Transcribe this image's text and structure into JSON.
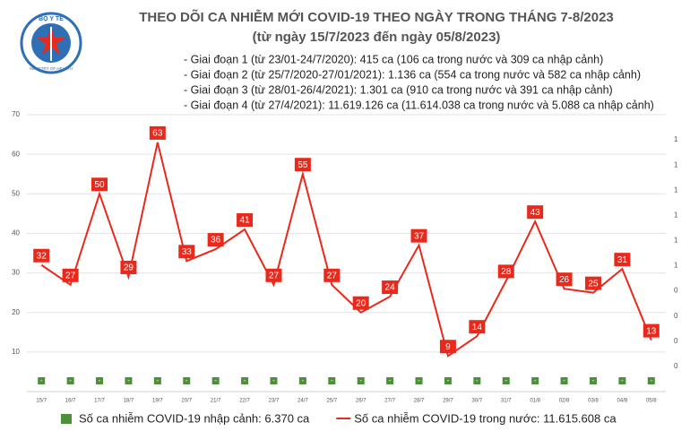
{
  "logo": {
    "top_text": "BỘ Y TẾ",
    "bottom_text": "MINISTRY OF HEALTH"
  },
  "chart_data": {
    "type": "line",
    "title": "THEO DÕI CA NHIỄM MỚI COVID-19 THEO NGÀY TRONG THÁNG 7-8/2023",
    "subtitle": "(từ ngày 15/7/2023 đến ngày 05/8/2023)",
    "annotations": [
      "- Giai đoạn 1 (từ 23/01-24/7/2020): 415 ca (106 ca trong nước và 309 ca nhập cảnh)",
      "- Giai đoạn 2 (từ 25/7/2020-27/01/2021): 1.136 ca (554 ca trong nước và 582 ca nhập cảnh)",
      "- Giai đoạn 3 (từ 28/01-26/4/2021): 1.301 ca (910 ca trong nước và 391 ca nhập cảnh)",
      "- Giai đoạn 4 (từ 27/4/2021): 11.619.126 ca (11.614.038 ca trong nước và 5.088 ca nhập cảnh)"
    ],
    "categories": [
      "15/7",
      "16/7",
      "17/7",
      "18/7",
      "19/7",
      "20/7",
      "21/7",
      "22/7",
      "23/7",
      "24/7",
      "25/7",
      "26/7",
      "27/7",
      "28/7",
      "29/7",
      "30/7",
      "31/7",
      "01/8",
      "02/8",
      "03/8",
      "04/8",
      "05/8"
    ],
    "series": [
      {
        "name": "Số ca nhiễm COVID-19 nhập cảnh: 6.370 ca",
        "type": "bar",
        "axis": "y2",
        "color": "#4e8f3a",
        "values": [
          0,
          0,
          0,
          0,
          0,
          0,
          0,
          0,
          0,
          0,
          0,
          0,
          0,
          0,
          0,
          0,
          0,
          0,
          0,
          0,
          0,
          0
        ],
        "value_labels": [
          "-",
          "-",
          "-",
          "-",
          "-",
          "-",
          "-",
          "-",
          "-",
          "-",
          "-",
          "-",
          "-",
          "-",
          "-",
          "-",
          "-",
          "-",
          "-",
          "-",
          "-",
          "-"
        ]
      },
      {
        "name": "Số ca nhiễm COVID-19 trong nước: 11.615.608 ca",
        "type": "line",
        "color": "#e8291c",
        "values": [
          32,
          27,
          50,
          29,
          63,
          33,
          36,
          41,
          27,
          55,
          27,
          20,
          24,
          37,
          9,
          14,
          28,
          43,
          26,
          25,
          31,
          13
        ]
      }
    ],
    "ylim": [
      0,
      70
    ],
    "yticks": [
      10,
      20,
      30,
      40,
      50,
      60,
      70
    ],
    "y2lim": [
      0,
      1.1
    ],
    "y2ticks": [
      {
        "value": 0.1,
        "label": "0"
      },
      {
        "value": 0.2,
        "label": "0"
      },
      {
        "value": 0.3,
        "label": "0"
      },
      {
        "value": 0.4,
        "label": "0"
      },
      {
        "value": 0.5,
        "label": "1"
      },
      {
        "value": 0.6,
        "label": "1"
      },
      {
        "value": 0.7,
        "label": "1"
      },
      {
        "value": 0.8,
        "label": "1"
      },
      {
        "value": 0.9,
        "label": "1"
      },
      1
    ],
    "grid": true
  }
}
